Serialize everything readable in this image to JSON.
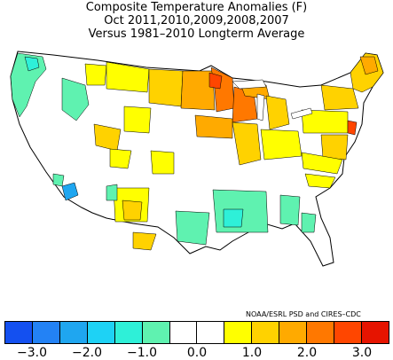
{
  "title": {
    "line1": "Composite Temperature Anomalies (F)",
    "line2": "Oct   2011,2010,2009,2008,2007",
    "line3": "Versus 1981–2010 Longterm Average"
  },
  "credit": "NOAA/ESRL PSD and CIRES–CDC",
  "colorbar": {
    "colors": [
      "#1450f0",
      "#2382f5",
      "#1fa6f0",
      "#1ed2f5",
      "#2ef0d8",
      "#5ff2b0",
      "#ffffff",
      "#ffffff",
      "#ffff00",
      "#ffd200",
      "#ffaa00",
      "#ff7800",
      "#ff4600",
      "#e61400"
    ],
    "tick_labels": [
      "−3.0",
      "−2.0",
      "−1.0",
      "0.0",
      "1.0",
      "2.0",
      "3.0"
    ]
  },
  "map": {
    "background": "#ffffff",
    "region_fill_legend": {
      "cool_light": "#5ff2b0",
      "cool_mid": "#2ef0d8",
      "cool_deep": "#1fa6f0",
      "warm_light": "#ffff00",
      "warm_mid": "#ffd200",
      "warm_orange": "#ffaa00",
      "warm_deep": "#ff7800",
      "warm_hot": "#ff4600"
    }
  }
}
